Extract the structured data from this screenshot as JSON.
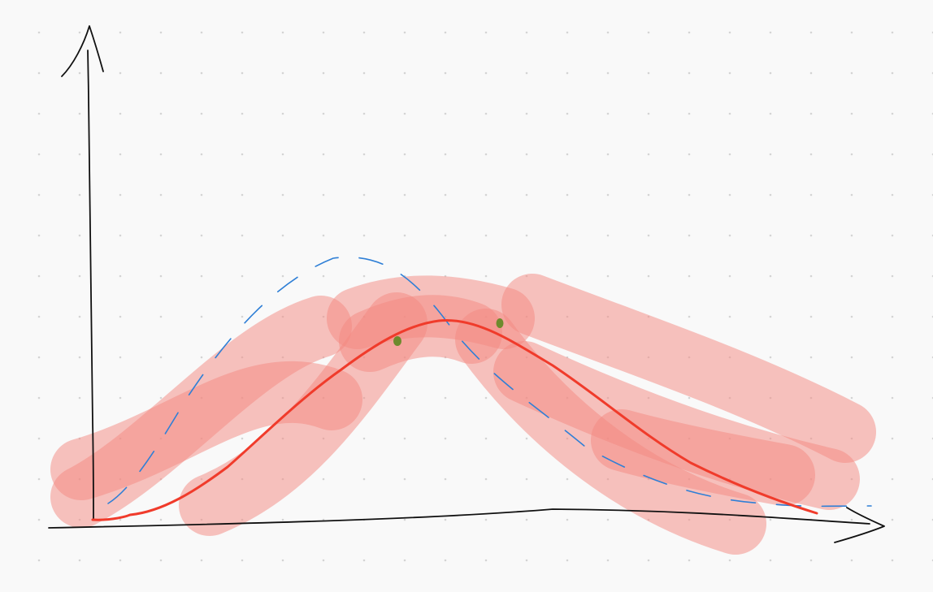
{
  "canvas": {
    "background_color": "#f9f9f9",
    "dot_grid_color": "#d4d4d4",
    "dot_grid": true
  },
  "axes": {
    "stroke_color": "#111111",
    "x_axis_arrow": true,
    "y_axis_arrow": true
  },
  "strokes": {
    "highlighter": {
      "color": "#f4877f",
      "opacity": 0.5,
      "count": 9
    },
    "red_curve": {
      "color": "#f03b2b",
      "shape": "bell-curve"
    },
    "blue_dashed_curve": {
      "color": "#2f7fd6",
      "shape": "bell-curve",
      "dashed": true
    },
    "green_marks": {
      "color": "#6e8a2c",
      "count": 2
    }
  }
}
